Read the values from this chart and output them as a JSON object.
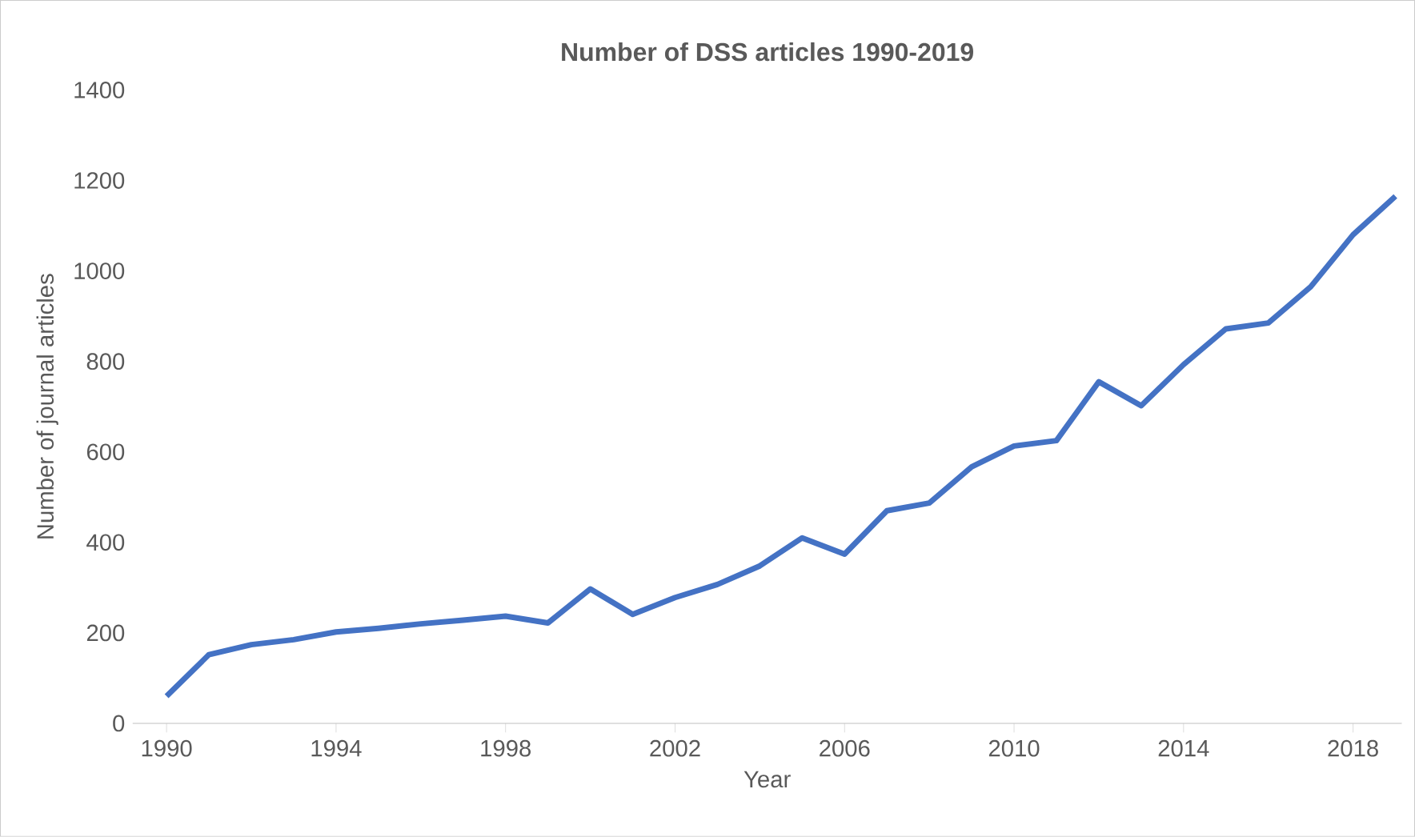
{
  "chart_data": {
    "type": "line",
    "title": "Number of DSS articles 1990-2019",
    "xlabel": "Year",
    "ylabel": "Number of journal articles",
    "x": [
      1990,
      1991,
      1992,
      1993,
      1994,
      1995,
      1996,
      1997,
      1998,
      1999,
      2000,
      2001,
      2002,
      2003,
      2004,
      2005,
      2006,
      2007,
      2008,
      2009,
      2010,
      2011,
      2012,
      2013,
      2014,
      2015,
      2016,
      2017,
      2018,
      2019
    ],
    "series": [
      {
        "color": "#4472c4",
        "values": [
          60,
          152,
          174,
          185,
          202,
          210,
          220,
          228,
          237,
          222,
          297,
          241,
          278,
          307,
          348,
          410,
          374,
          470,
          487,
          567,
          613,
          625,
          755,
          702,
          793,
          872,
          885,
          965,
          1080,
          1165
        ]
      }
    ],
    "xlim": [
      1989.2,
      2019.15
    ],
    "xticks": [
      1990,
      1994,
      1998,
      2002,
      2006,
      2010,
      2014,
      2018
    ],
    "ylim": [
      0,
      1400
    ],
    "yticks": [
      0,
      200,
      400,
      600,
      800,
      1000,
      1200,
      1400
    ],
    "grid": false,
    "marker": "none",
    "line_style": "solid"
  }
}
